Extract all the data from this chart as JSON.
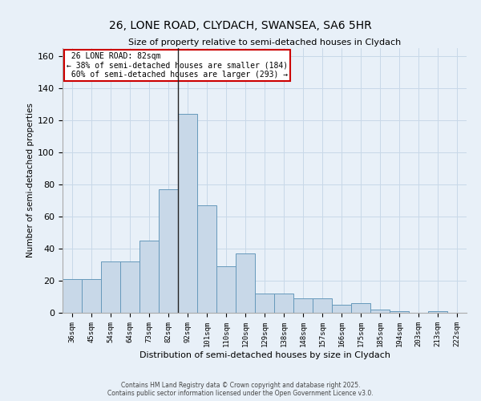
{
  "title_line1": "26, LONE ROAD, CLYDACH, SWANSEA, SA6 5HR",
  "title_line2": "Size of property relative to semi-detached houses in Clydach",
  "xlabel": "Distribution of semi-detached houses by size in Clydach",
  "ylabel": "Number of semi-detached properties",
  "categories": [
    "36sqm",
    "45sqm",
    "54sqm",
    "64sqm",
    "73sqm",
    "82sqm",
    "92sqm",
    "101sqm",
    "110sqm",
    "120sqm",
    "129sqm",
    "138sqm",
    "148sqm",
    "157sqm",
    "166sqm",
    "175sqm",
    "185sqm",
    "194sqm",
    "203sqm",
    "213sqm",
    "222sqm"
  ],
  "values": [
    21,
    21,
    32,
    32,
    45,
    77,
    124,
    67,
    29,
    37,
    12,
    12,
    9,
    9,
    5,
    6,
    2,
    1,
    0,
    1,
    0
  ],
  "bar_color": "#c8d8e8",
  "bar_edge_color": "#6699bb",
  "highlight_index": 5,
  "highlight_label": "26 LONE ROAD: 82sqm",
  "pct_smaller": 38,
  "n_smaller": 184,
  "pct_larger": 60,
  "n_larger": 293,
  "vline_color": "#222222",
  "annotation_box_color": "#ffffff",
  "annotation_box_edge": "#cc0000",
  "ylim": [
    0,
    165
  ],
  "yticks": [
    0,
    20,
    40,
    60,
    80,
    100,
    120,
    140,
    160
  ],
  "grid_color": "#c8d8e8",
  "background_color": "#e8f0f8",
  "footer_line1": "Contains HM Land Registry data © Crown copyright and database right 2025.",
  "footer_line2": "Contains public sector information licensed under the Open Government Licence v3.0."
}
